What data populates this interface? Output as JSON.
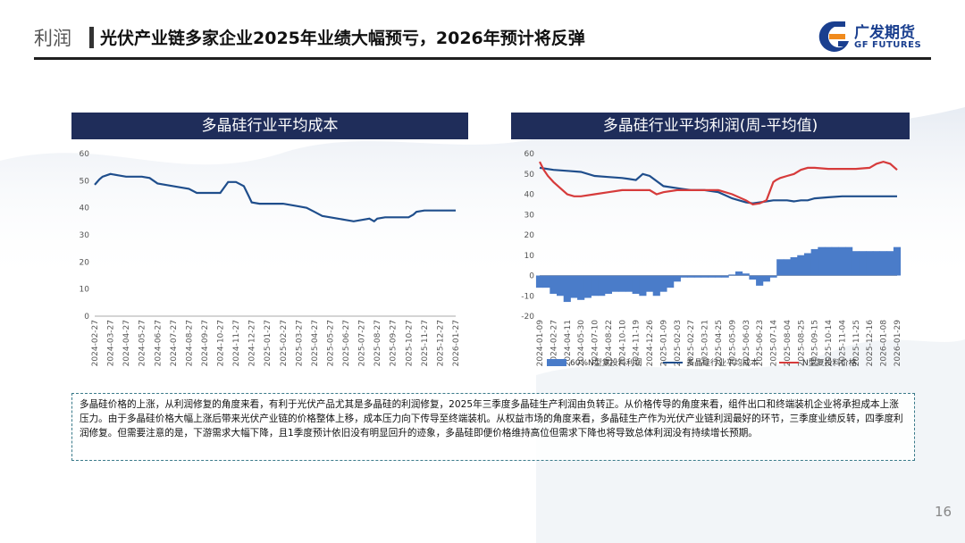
{
  "header": {
    "section": "利润",
    "title": "光伏产业链多家企业2025年业绩大幅预亏，2026年预计将反弹"
  },
  "logo": {
    "cn": "广发期货",
    "en": "GF FUTURES",
    "accent_blue": "#1a3f8f",
    "accent_orange": "#f08a1c"
  },
  "chart_data": [
    {
      "type": "line",
      "title": "多晶硅行业平均成本",
      "ylim": [
        0,
        60
      ],
      "yticks": [
        0,
        10,
        20,
        30,
        40,
        50,
        60
      ],
      "xticks": [
        "2024-02-27",
        "2024-03-27",
        "2024-04-27",
        "2024-05-27",
        "2024-06-27",
        "2024-07-27",
        "2024-08-27",
        "2024-09-27",
        "2024-10-27",
        "2024-11-27",
        "2024-12-27",
        "2025-01-27",
        "2025-02-27",
        "2025-03-27",
        "2025-04-27",
        "2025-05-27",
        "2025-06-27",
        "2025-07-27",
        "2025-08-27",
        "2025-09-27",
        "2025-10-27",
        "2025-11-27",
        "2025-12-27",
        "2026-01-27"
      ],
      "grid": false,
      "series": [
        {
          "color": "#1f4e8c",
          "x": [
            0,
            0.3,
            0.5,
            1,
            1.5,
            2,
            3,
            3.5,
            4,
            4.5,
            5,
            5.5,
            6,
            6.5,
            7,
            7.5,
            8,
            8.5,
            9,
            9.5,
            9.8,
            10,
            10.5,
            11,
            12,
            12.5,
            13,
            13.5,
            14,
            14.5,
            15,
            15.5,
            16,
            16.5,
            17,
            17.5,
            17.8,
            18,
            18.5,
            19,
            19.5,
            20,
            20.3,
            20.5,
            21,
            22,
            23
          ],
          "y": [
            48.5,
            50.5,
            51.5,
            52.5,
            52,
            51.5,
            51.5,
            51,
            49,
            48.5,
            48,
            47.5,
            47,
            45.5,
            45.5,
            45.5,
            45.5,
            49.5,
            49.5,
            48,
            44.5,
            42,
            41.5,
            41.5,
            41.5,
            41,
            40.5,
            40,
            38.5,
            37,
            36.5,
            36,
            35.5,
            35,
            35.5,
            36,
            35,
            36,
            36.5,
            36.5,
            36.5,
            36.5,
            37.5,
            38.5,
            39,
            39,
            39
          ]
        }
      ]
    },
    {
      "type": "line+bar",
      "title": "多晶硅行业平均利润(周-平均值)",
      "ylim": [
        -20,
        60
      ],
      "yticks": [
        -20,
        -10,
        0,
        10,
        20,
        30,
        40,
        50,
        60
      ],
      "xticks": [
        "2024-01-09",
        "2024-02-27",
        "2024-04-11",
        "2024-05-30",
        "2024-07-10",
        "2024-08-22",
        "2024-10-10",
        "2024-11-19",
        "2024-12-26",
        "2025-01-09",
        "2025-02-03",
        "2025-02-27",
        "2025-03-21",
        "2025-04-25",
        "2025-05-09",
        "2025-06-03",
        "2025-06-23",
        "2025-07-14",
        "2025-08-04",
        "2025-08-25",
        "2025-09-15",
        "2025-10-14",
        "2025-11-04",
        "2025-11-25",
        "2025-12-16",
        "2026-01-08",
        "2026-01-29"
      ],
      "grid": false,
      "legend_position": "bottom",
      "legend": [
        "60%N型复投料利润",
        "多晶硅行业平均成本",
        "N型复投料价格"
      ],
      "series": [
        {
          "name": "60%N型复投料利润",
          "kind": "bar",
          "color": "#4a7cc9",
          "x": [
            0,
            0.5,
            1,
            1.5,
            2,
            2.5,
            3,
            3.5,
            4,
            4.5,
            5,
            5.5,
            6,
            6.5,
            7,
            7.5,
            8,
            8.5,
            9,
            9.5,
            10,
            10.5,
            11,
            11.5,
            12,
            12.5,
            13,
            13.5,
            14,
            14.5,
            15,
            15.5,
            16,
            16.5,
            17,
            17.5,
            18,
            18.5,
            19,
            19.5,
            20,
            20.5,
            21,
            21.5,
            22,
            22.5,
            23,
            23.5,
            24,
            24.5,
            25,
            25.5,
            26
          ],
          "values": [
            -6,
            -6,
            -9,
            -10,
            -13,
            -11,
            -12,
            -11,
            -10,
            -10,
            -9,
            -8,
            -8,
            -8,
            -9,
            -10,
            -8,
            -10,
            -8,
            -6,
            -3,
            -1,
            -1,
            -1,
            -1,
            -1,
            -1,
            -1,
            0.5,
            2,
            1,
            -2,
            -5,
            -3,
            -1,
            8,
            8,
            9,
            10,
            11,
            13,
            14,
            14,
            14,
            14,
            14,
            12,
            12,
            12,
            12,
            12,
            12,
            14
          ]
        },
        {
          "name": "多晶硅行业平均成本",
          "kind": "line",
          "color": "#1f4e8c",
          "x": [
            0,
            1,
            2,
            3,
            4,
            5,
            6,
            6.5,
            7,
            7.5,
            8,
            9,
            10,
            11,
            12,
            12.5,
            13,
            13.5,
            14,
            14.5,
            15,
            15.5,
            16,
            17,
            18,
            18.5,
            19,
            19.5,
            20,
            21,
            22,
            23,
            24,
            25,
            26
          ],
          "y": [
            53,
            52,
            51.5,
            51,
            49,
            48.5,
            48,
            47.5,
            47,
            50,
            49,
            44,
            43,
            42,
            42,
            41.5,
            41,
            39.5,
            38,
            37,
            36,
            35.5,
            36,
            37,
            37,
            36.5,
            37,
            37,
            38,
            38.5,
            39,
            39,
            39,
            39,
            39
          ]
        },
        {
          "name": "N型复投料价格",
          "kind": "line",
          "color": "#d63b3b",
          "x": [
            0,
            0.3,
            0.6,
            1,
            1.5,
            2,
            2.5,
            3,
            4,
            5,
            6,
            7,
            8,
            8.5,
            9,
            10,
            11,
            12,
            13,
            14,
            15,
            15.5,
            16,
            16.5,
            17,
            17.2,
            17.5,
            18,
            18.5,
            19,
            19.5,
            20,
            21,
            22,
            23,
            24,
            24.5,
            25,
            25.5,
            26
          ],
          "y": [
            56,
            52,
            49,
            46,
            43,
            40,
            39,
            39,
            40,
            41,
            42,
            42,
            42,
            40,
            41,
            42,
            42,
            42,
            42,
            40,
            37,
            35,
            35.5,
            37,
            46,
            47,
            48,
            49,
            50,
            52,
            53,
            53,
            52.5,
            52.5,
            52.5,
            53,
            55,
            56,
            55,
            52
          ]
        }
      ]
    }
  ],
  "note": {
    "text": "多晶硅价格的上涨，从利润修复的角度来看，有利于光伏产品尤其是多晶硅的利润修复，2025年三季度多晶硅生产利润由负转正。从价格传导的角度来看，组件出口和终端装机企业将承担成本上涨压力。由于多晶硅价格大幅上涨后带来光伏产业链的价格整体上移，成本压力向下传导至终端装机。从权益市场的角度来看，多晶硅生产作为光伏产业链利润最好的环节，三季度业绩反转，四季度利润修复。但需要注意的是，下游需求大幅下降，且1季度预计依旧没有明显回升的迹象，多晶硅即便价格维持高位但需求下降也将导致总体利润没有持续增长预期。"
  },
  "page": {
    "number": "16"
  }
}
